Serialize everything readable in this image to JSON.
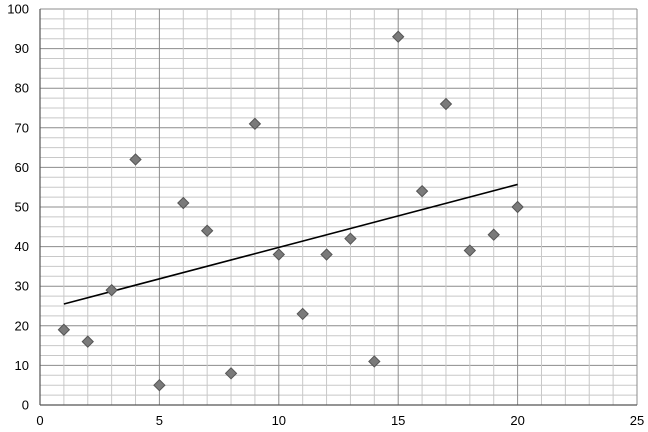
{
  "chart_data": {
    "type": "scatter",
    "title": "",
    "xlabel": "",
    "ylabel": "",
    "xlim": [
      0,
      25
    ],
    "ylim": [
      0,
      100
    ],
    "x_ticks": [
      "0",
      "5",
      "10",
      "15",
      "20",
      "25"
    ],
    "y_ticks": [
      "0",
      "10",
      "20",
      "30",
      "40",
      "50",
      "60",
      "70",
      "80",
      "90",
      "100"
    ],
    "grid": true,
    "legend": "none",
    "marker": "diamond",
    "series": [
      {
        "x": [
          1,
          2,
          3,
          4,
          5,
          6,
          7,
          8,
          9,
          10,
          11,
          12,
          13,
          14,
          15,
          16,
          17,
          18,
          19,
          20
        ],
        "y": [
          19,
          16,
          29,
          62,
          5,
          51,
          44,
          8,
          71,
          38,
          23,
          38,
          42,
          11,
          93,
          54,
          76,
          39,
          43,
          50
        ]
      }
    ],
    "trendline": {
      "type": "linear",
      "x": [
        1,
        20
      ],
      "y": [
        25.5,
        55.7
      ]
    },
    "colors": {
      "marker": "#7a7a7a",
      "marker_edge": "#555555",
      "trendline": "#000000",
      "grid_major": "#8c8c8c",
      "grid_minor": "#c8c8c8"
    }
  }
}
